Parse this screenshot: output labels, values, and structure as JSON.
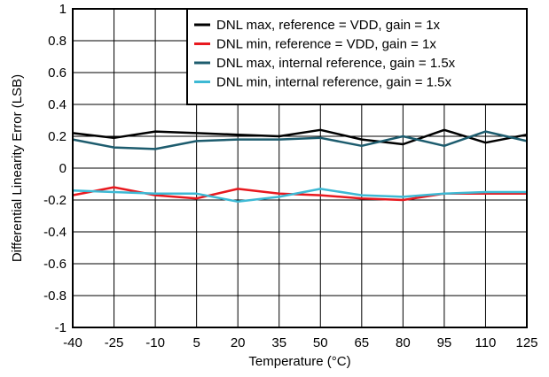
{
  "chart_data": {
    "type": "line",
    "title": "",
    "xlabel": "Temperature (°C)",
    "ylabel": "Differential Linearity Error (LSB)",
    "x": [
      -40,
      -25,
      -10,
      5,
      20,
      35,
      50,
      65,
      80,
      95,
      110,
      125
    ],
    "xlim": [
      -40,
      125
    ],
    "ylim": [
      -1,
      1
    ],
    "x_ticks": [
      "-40",
      "-25",
      "-10",
      "5",
      "20",
      "35",
      "50",
      "65",
      "80",
      "95",
      "110",
      "125"
    ],
    "y_ticks": [
      "1",
      "0.8",
      "0.6",
      "0.4",
      "0.2",
      "0",
      "-0.2",
      "-0.4",
      "-0.6",
      "-0.8",
      "-1"
    ],
    "grid": true,
    "legend_position": "top-right",
    "series": [
      {
        "name": "DNL max, reference = VDD, gain = 1x",
        "color": "#000000",
        "values": [
          0.22,
          0.19,
          0.23,
          0.22,
          0.21,
          0.2,
          0.24,
          0.18,
          0.15,
          0.24,
          0.16,
          0.21
        ]
      },
      {
        "name": "DNL min, reference = VDD, gain = 1x",
        "color": "#e8191f",
        "values": [
          -0.17,
          -0.12,
          -0.17,
          -0.19,
          -0.13,
          -0.16,
          -0.17,
          -0.19,
          -0.2,
          -0.16,
          -0.16,
          -0.16
        ]
      },
      {
        "name": "DNL max, internal reference, gain = 1.5x",
        "color": "#1d5c6e",
        "values": [
          0.18,
          0.13,
          0.12,
          0.17,
          0.18,
          0.18,
          0.19,
          0.14,
          0.2,
          0.14,
          0.23,
          0.17
        ]
      },
      {
        "name": "DNL min, internal reference, gain = 1.5x",
        "color": "#3db9d4",
        "values": [
          -0.14,
          -0.15,
          -0.16,
          -0.16,
          -0.21,
          -0.18,
          -0.13,
          -0.17,
          -0.18,
          -0.16,
          -0.15,
          -0.15
        ]
      }
    ]
  }
}
